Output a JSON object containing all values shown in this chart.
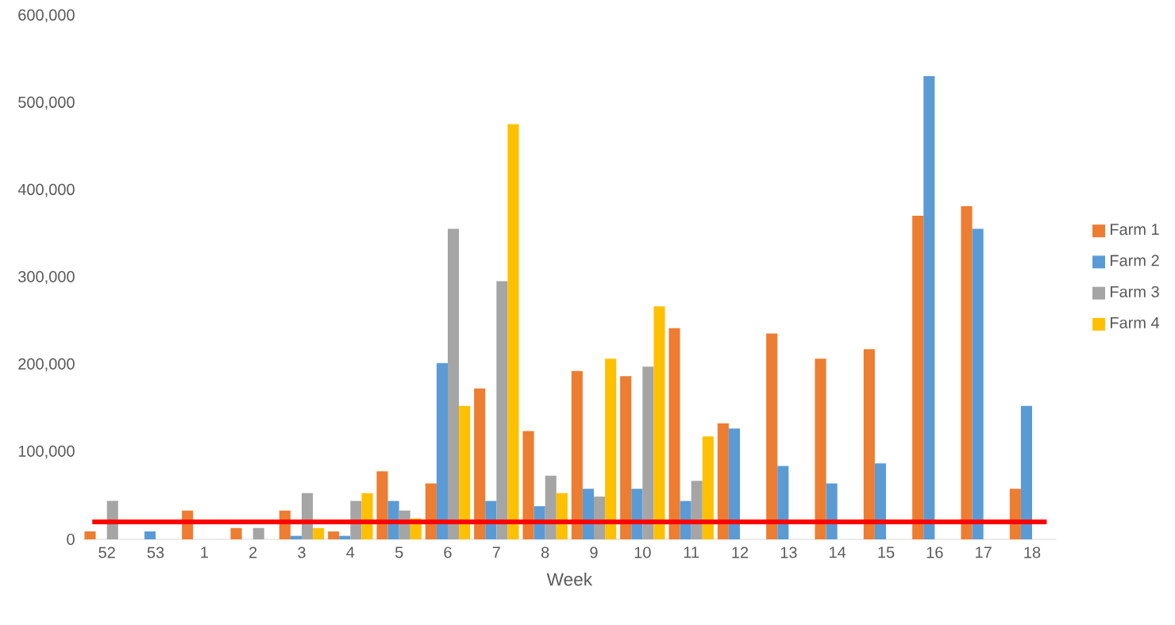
{
  "chart_data": {
    "type": "bar",
    "xlabel": "Week",
    "categories": [
      "52",
      "53",
      "1",
      "2",
      "3",
      "4",
      "5",
      "6",
      "7",
      "8",
      "9",
      "10",
      "11",
      "12",
      "13",
      "14",
      "15",
      "16",
      "17",
      "18"
    ],
    "series": [
      {
        "name": "Farm 1",
        "color": "#ed7d31",
        "values": [
          9000,
          null,
          33000,
          13000,
          33000,
          9000,
          78000,
          64000,
          173000,
          124000,
          193000,
          187000,
          242000,
          133000,
          236000,
          207000,
          218000,
          371000,
          382000,
          58000
        ]
      },
      {
        "name": "Farm 2",
        "color": "#5b9bd5",
        "values": [
          null,
          9000,
          null,
          null,
          4000,
          4000,
          44000,
          202000,
          44000,
          38000,
          58000,
          58000,
          44000,
          127000,
          84000,
          64000,
          87000,
          531000,
          356000,
          153000
        ]
      },
      {
        "name": "Farm 3",
        "color": "#a5a5a5",
        "values": [
          44000,
          null,
          null,
          13000,
          53000,
          44000,
          33000,
          356000,
          296000,
          73000,
          49000,
          198000,
          67000,
          null,
          null,
          null,
          null,
          null,
          null,
          null
        ]
      },
      {
        "name": "Farm 4",
        "color": "#ffc000",
        "values": [
          null,
          null,
          null,
          null,
          13000,
          53000,
          24000,
          153000,
          476000,
          53000,
          207000,
          267000,
          118000,
          null,
          null,
          null,
          null,
          null,
          null,
          null
        ]
      }
    ],
    "ylim": [
      0,
      600000
    ],
    "yticks": [
      {
        "value": 0,
        "label": "0"
      },
      {
        "value": 100000,
        "label": "100,000"
      },
      {
        "value": 200000,
        "label": "200,000"
      },
      {
        "value": 300000,
        "label": "300,000"
      },
      {
        "value": 400000,
        "label": "400,000"
      },
      {
        "value": 500000,
        "label": "500,000"
      },
      {
        "value": 600000,
        "label": "600,000"
      }
    ],
    "ref_lines": [
      {
        "axis": "y",
        "value": 20000,
        "color": "#ff0000"
      }
    ],
    "grid": false,
    "legend": "right"
  }
}
